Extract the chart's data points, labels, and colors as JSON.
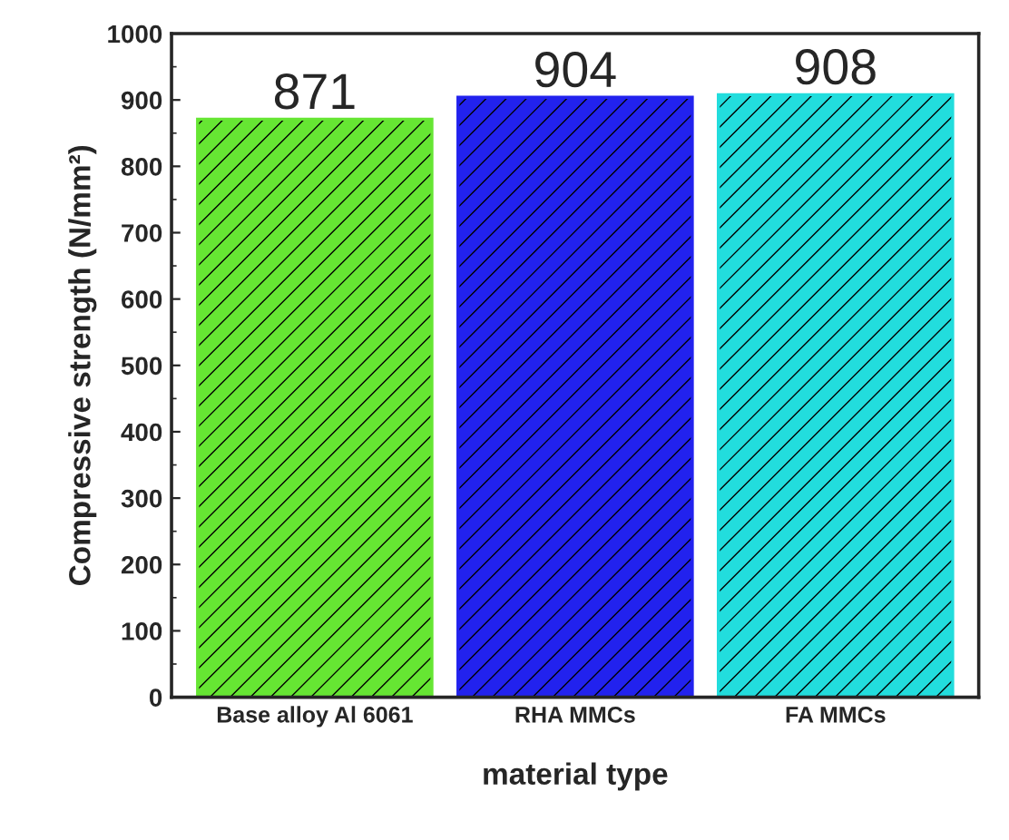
{
  "chart_data": {
    "type": "bar",
    "categories": [
      "Base alloy Al 6061",
      "RHA MMCs",
      "FA MMCs"
    ],
    "values": [
      871,
      904,
      908
    ],
    "colors": [
      "#66e633",
      "#2222ee",
      "#22dddd"
    ],
    "xlabel": "material type",
    "ylabel": "Compressive strength (N/mm²)",
    "ylim": [
      0,
      1000
    ],
    "yticks": [
      0,
      100,
      200,
      300,
      400,
      500,
      600,
      700,
      800,
      900,
      1000
    ],
    "data_labels": true,
    "grid": false,
    "legend": false
  }
}
